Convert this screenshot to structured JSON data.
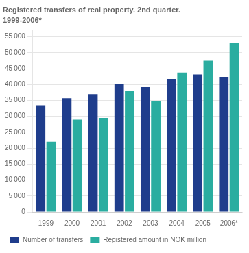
{
  "chart_data": {
    "type": "bar",
    "title": "Registered transfers of real property. 2nd quarter.",
    "subtitle": "1999-2006*",
    "categories": [
      "1999",
      "2000",
      "2001",
      "2002",
      "2003",
      "2004",
      "2005",
      "2006*"
    ],
    "series": [
      {
        "name": "Number of transfers",
        "color": "#1f3d8c",
        "values": [
          33500,
          35700,
          37000,
          40200,
          39200,
          41800,
          43200,
          42300
        ]
      },
      {
        "name": "Registered amount in NOK million",
        "color": "#2aada0",
        "values": [
          22000,
          29000,
          29500,
          38000,
          34700,
          43800,
          47500,
          53200
        ]
      }
    ],
    "ylim": [
      0,
      57000
    ],
    "yticks": [
      0,
      {
        "value": 5000,
        "label": "5 000"
      },
      {
        "value": 10000,
        "label": "10 000"
      },
      {
        "value": 15000,
        "label": "15 000"
      },
      {
        "value": 20000,
        "label": "20 000"
      },
      {
        "value": 25000,
        "label": "25 000"
      },
      {
        "value": 30000,
        "label": "30 000"
      },
      {
        "value": 35000,
        "label": "35 000"
      },
      {
        "value": 40000,
        "label": "40 000"
      },
      {
        "value": 45000,
        "label": "45 000"
      },
      {
        "value": 50000,
        "label": "50 000"
      },
      {
        "value": 55000,
        "label": "55 000"
      }
    ],
    "grid": true,
    "legend": "bottom"
  }
}
